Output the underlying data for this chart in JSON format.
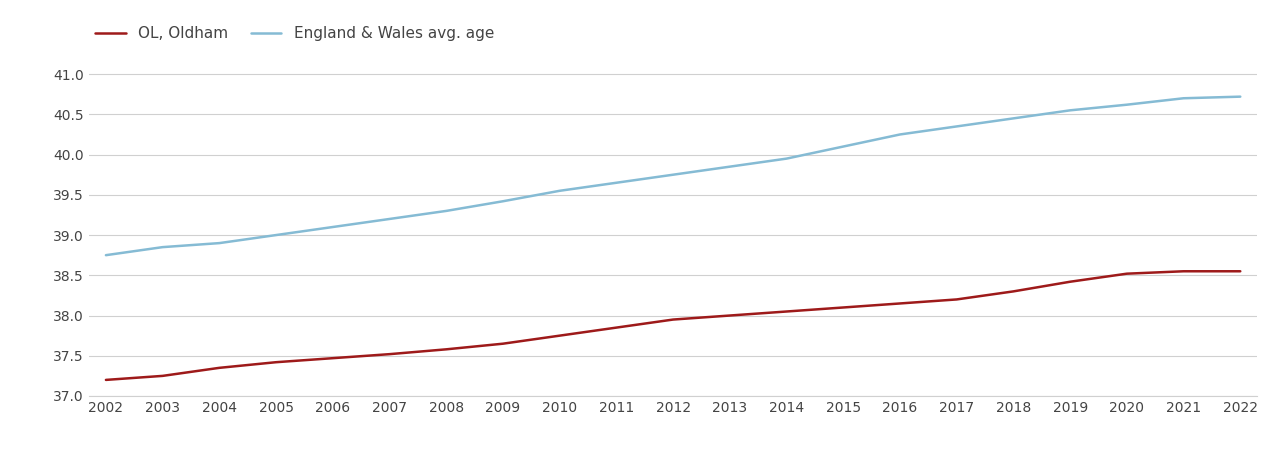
{
  "years": [
    2002,
    2003,
    2004,
    2005,
    2006,
    2007,
    2008,
    2009,
    2010,
    2011,
    2012,
    2013,
    2014,
    2015,
    2016,
    2017,
    2018,
    2019,
    2020,
    2021,
    2022
  ],
  "oldham": [
    37.2,
    37.25,
    37.35,
    37.42,
    37.47,
    37.52,
    37.58,
    37.65,
    37.75,
    37.85,
    37.95,
    38.0,
    38.05,
    38.1,
    38.15,
    38.2,
    38.3,
    38.42,
    38.52,
    38.55,
    38.55
  ],
  "england_wales": [
    38.75,
    38.85,
    38.9,
    39.0,
    39.1,
    39.2,
    39.3,
    39.42,
    39.55,
    39.65,
    39.75,
    39.85,
    39.95,
    40.1,
    40.25,
    40.35,
    40.45,
    40.55,
    40.62,
    40.7,
    40.72
  ],
  "oldham_color": "#9e1a1a",
  "england_wales_color": "#85bbd4",
  "oldham_label": "OL, Oldham",
  "england_wales_label": "England & Wales avg. age",
  "ylim_min": 37.0,
  "ylim_max": 41.25,
  "yticks": [
    37.0,
    37.5,
    38.0,
    38.5,
    39.0,
    39.5,
    40.0,
    40.5,
    41.0
  ],
  "background_color": "#ffffff",
  "grid_color": "#d0d0d0",
  "line_width": 1.8,
  "legend_fontsize": 11,
  "tick_fontsize": 10
}
